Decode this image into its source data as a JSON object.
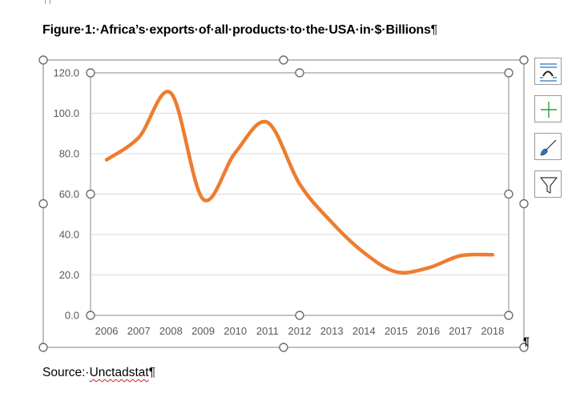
{
  "document": {
    "caption": "Figure·1:·Africa’s·exports·of·all·products·to·the·USA·in·$·Billions",
    "caption_pilcrow": "¶",
    "source_prefix": "Source:·",
    "source_name": "Unctadstat",
    "source_pilcrow": "¶",
    "after_chart_pilcrow": "¶"
  },
  "side_buttons": [
    "layout-options-icon",
    "chart-elements-plus-icon",
    "chart-styles-brush-icon",
    "chart-filters-funnel-icon"
  ],
  "colors": {
    "series": "#ED7D31",
    "gridline": "#D9D9D9",
    "axis_text": "#595959",
    "frame": "#7f7f7f",
    "plus_green": "#2E9E3F",
    "brush_blue": "#2E75B6"
  },
  "chart_data": {
    "type": "line",
    "smooth": true,
    "title": "",
    "xlabel": "",
    "ylabel": "",
    "categories": [
      "2006",
      "2007",
      "2008",
      "2009",
      "2010",
      "2011",
      "2012",
      "2013",
      "2014",
      "2015",
      "2016",
      "2017",
      "2018"
    ],
    "series": [
      {
        "values": [
          77.0,
          88.0,
          110.0,
          57.5,
          80.5,
          95.5,
          65.0,
          46.0,
          31.0,
          21.5,
          23.5,
          29.5,
          30.0
        ]
      }
    ],
    "y_ticks": [
      "0.0",
      "20.0",
      "40.0",
      "60.0",
      "80.0",
      "100.0",
      "120.0"
    ],
    "ylim": [
      0,
      120
    ],
    "gridlines": true,
    "legend": "none"
  }
}
